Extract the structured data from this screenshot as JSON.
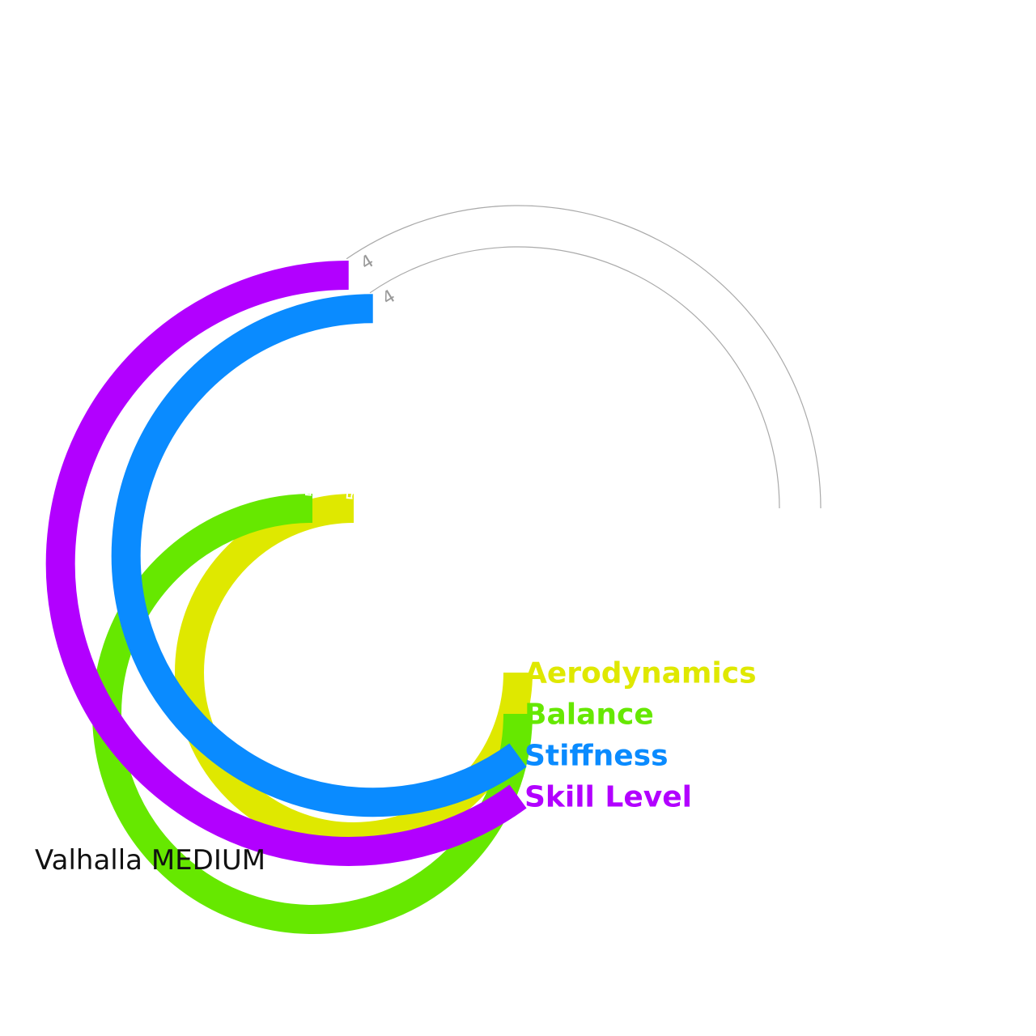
{
  "chart_data": {
    "type": "radial_bar",
    "title": "",
    "max_value": 5,
    "categories": [
      "Aerodynamics",
      "Balance",
      "Stiffness",
      "Skill Level"
    ],
    "values": [
      5,
      5,
      4,
      4
    ],
    "colors": [
      "#dfe800",
      "#66e800",
      "#0a8bff",
      "#b200ff"
    ],
    "value_label_color": "#9a9a9a",
    "track_color": "#aaaaaa"
  },
  "caption": "Valhalla MEDIUM"
}
